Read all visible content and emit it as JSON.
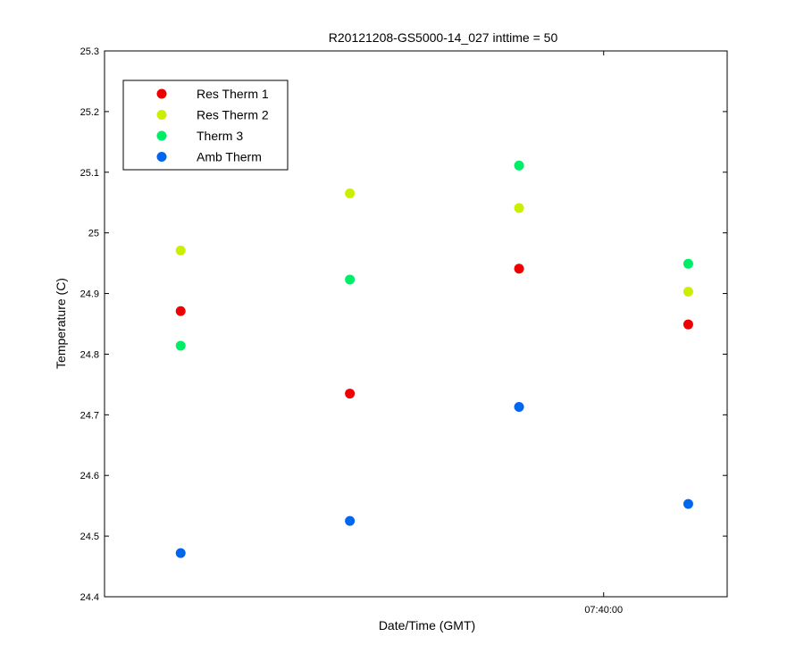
{
  "chart_data": {
    "type": "scatter",
    "title": "R20121208-GS5000-14_027 inttime = 50",
    "xlabel": "Date/Time (GMT)",
    "ylabel": "Temperature (C)",
    "ylim": [
      24.4,
      25.3
    ],
    "y_ticks": [
      "24.4",
      "24.5",
      "24.6",
      "24.7",
      "24.8",
      "24.9",
      "25",
      "25.1",
      "25.2",
      "25.3"
    ],
    "x_ticks": [
      "07:40:00"
    ],
    "x": [
      "07:39:35",
      "07:39:45",
      "07:39:55",
      "07:40:05"
    ],
    "xlim": [
      "07:39:30.5",
      "07:40:07.3"
    ],
    "x_tick_values": [
      "07:40:00"
    ],
    "grid": false,
    "legend_position": "top-left",
    "series": [
      {
        "name": "Res Therm 1",
        "color": "#ee0000",
        "values": [
          24.871,
          24.735,
          24.941,
          24.849
        ]
      },
      {
        "name": "Res Therm 2",
        "color": "#ccee00",
        "values": [
          24.971,
          25.065,
          25.041,
          24.903
        ]
      },
      {
        "name": "Therm 3",
        "color": "#00ee66",
        "values": [
          24.814,
          24.923,
          25.111,
          24.949
        ]
      },
      {
        "name": "Amb Therm",
        "color": "#0066ee",
        "values": [
          24.472,
          24.525,
          24.713,
          24.553
        ]
      }
    ]
  }
}
